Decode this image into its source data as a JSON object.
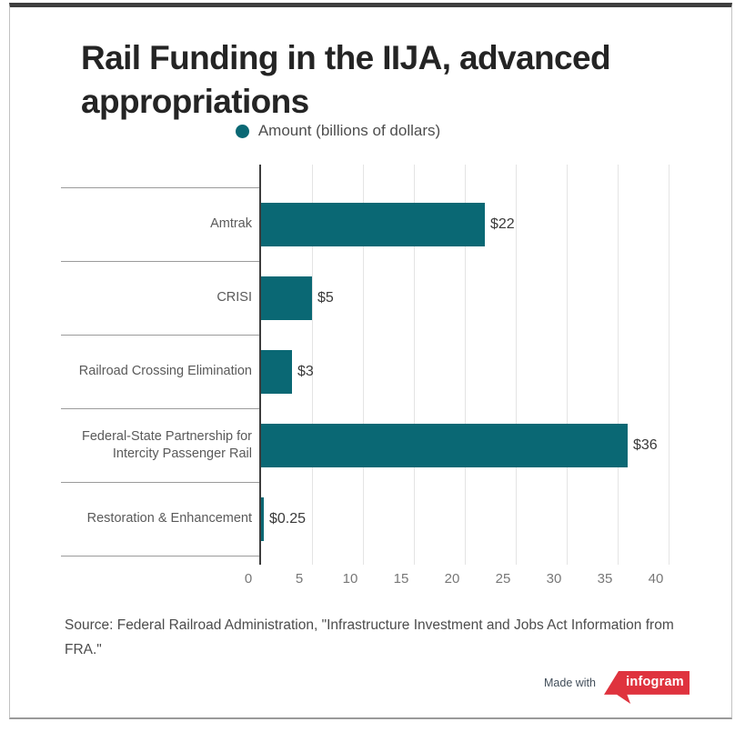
{
  "header": {
    "title": "Rail Funding in the IIJA, advanced appropriations"
  },
  "legend": {
    "label": "Amount (billions of dollars)",
    "swatch": "circle"
  },
  "chart_data": {
    "type": "bar",
    "orientation": "horizontal",
    "title": "Rail Funding in the IIJA, advanced appropriations",
    "series_label": "Amount (billions of dollars)",
    "categories": [
      "Amtrak",
      "CRISI",
      "Railroad Crossing Elimination",
      "Federal-State Partnership for Intercity Passenger Rail",
      "Restoration & Enhancement"
    ],
    "values": [
      22,
      5,
      3,
      36,
      0.25
    ],
    "value_labels": [
      "$22",
      "$5",
      "$3",
      "$36",
      "$0.25"
    ],
    "xlabel": "",
    "ylabel": "",
    "xlim": [
      0,
      40
    ],
    "xticks": [
      0,
      5,
      10,
      15,
      20,
      25,
      30,
      35,
      40
    ],
    "grid": true,
    "legend_position": "top"
  },
  "colors": {
    "bar": "#0a6874",
    "brand_red": "#df333e",
    "axis": "#3d3d3d",
    "gridline": "#e4e4e4",
    "divider": "#9b9b9b"
  },
  "footer": {
    "source": "Source: Federal Railroad Administration, \"Infrastructure Investment and Jobs Act Information from FRA.\"",
    "made_with": "Made with",
    "brand": "infogram"
  }
}
